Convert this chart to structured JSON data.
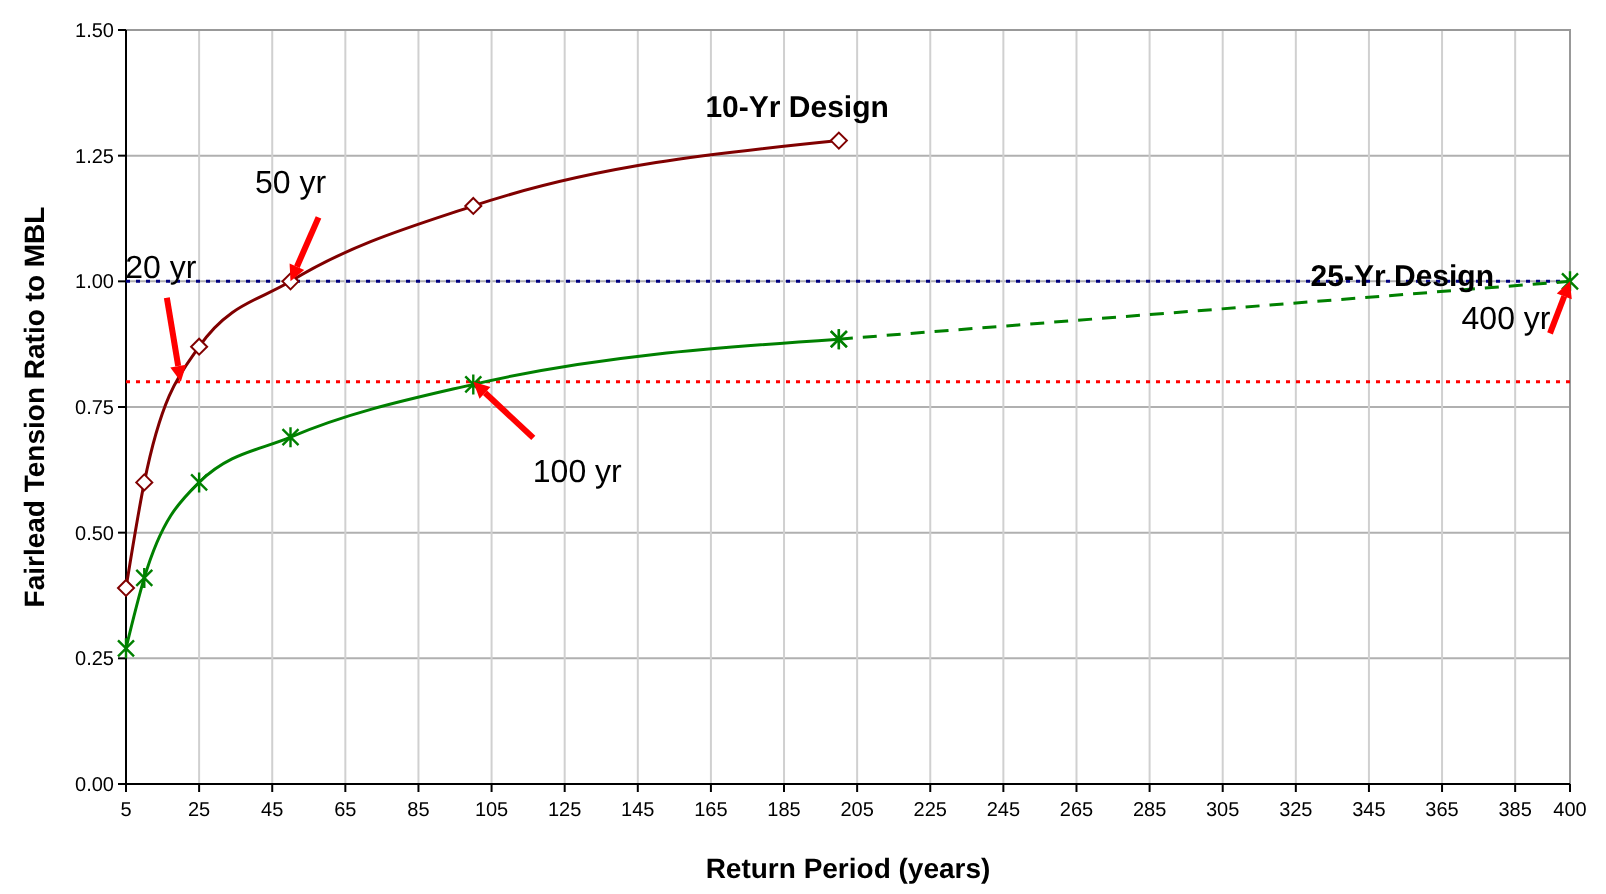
{
  "chart_data": {
    "type": "line",
    "xlabel": "Return Period (years)",
    "ylabel": "Fairlead Tension Ratio to MBL",
    "xlim": [
      5,
      400
    ],
    "xticks": [
      5,
      25,
      45,
      65,
      85,
      105,
      125,
      145,
      165,
      185,
      205,
      225,
      245,
      265,
      285,
      305,
      325,
      345,
      365,
      385,
      400
    ],
    "ylim": [
      0,
      1.5
    ],
    "yticks": [
      {
        "value": 0,
        "label": "0.00"
      },
      {
        "value": 0.25,
        "label": "0.25"
      },
      {
        "value": 0.5,
        "label": "0.50"
      },
      {
        "value": 0.75,
        "label": "0.75"
      },
      {
        "value": 1,
        "label": "1.00"
      },
      {
        "value": 1.25,
        "label": "1.25"
      },
      {
        "value": 1.5,
        "label": "1.50"
      }
    ],
    "grid": true,
    "series": [
      {
        "name": "10-Yr Design",
        "color": "#800000",
        "x": [
          5,
          10,
          25,
          50,
          100,
          200
        ],
        "values": [
          0.39,
          0.6,
          0.87,
          1.0,
          1.15,
          1.28
        ],
        "marker": "diamond",
        "line_style": "solid"
      },
      {
        "color": "#008000",
        "x": [
          5,
          10,
          25,
          50,
          100,
          200
        ],
        "values": [
          0.27,
          0.41,
          0.6,
          0.69,
          0.795,
          0.885
        ],
        "marker": "cross",
        "line_style": "solid"
      },
      {
        "name": "25-Yr Design",
        "color": "#008000",
        "x": [
          200,
          400
        ],
        "values": [
          0.885,
          1.0
        ],
        "marker": "cross",
        "line_style": "dashed"
      }
    ],
    "ref_lines": [
      {
        "axis": "y",
        "value": 1.0,
        "color": "#000080",
        "line_style": "dotted"
      },
      {
        "axis": "y",
        "value": 0.8,
        "color": "#ff0000",
        "line_style": "dotted"
      }
    ],
    "annotations": [
      {
        "text": "20 yr",
        "x": 20,
        "y": 0.8
      },
      {
        "text": "50 yr",
        "x": 50,
        "y": 1.0
      },
      {
        "text": "100 yr",
        "x": 100,
        "y": 0.8
      },
      {
        "text": "400 yr",
        "x": 400,
        "y": 1.0
      }
    ]
  }
}
